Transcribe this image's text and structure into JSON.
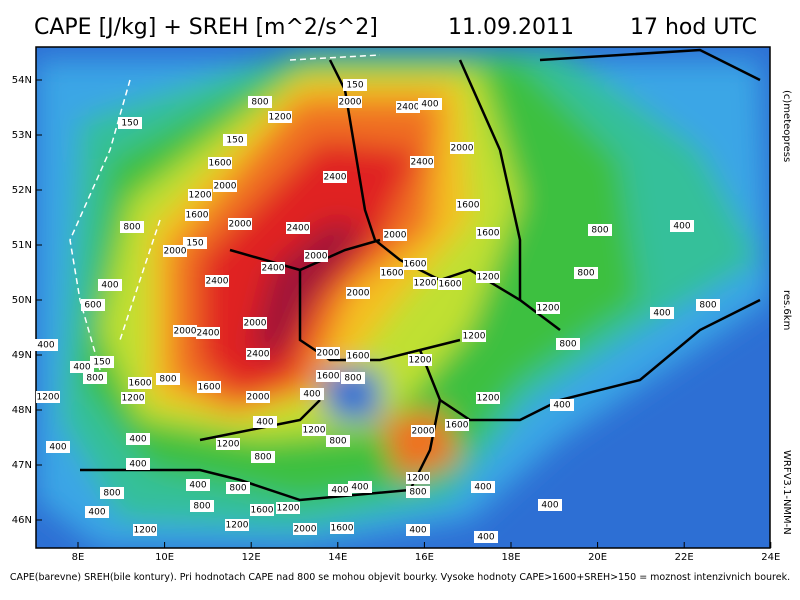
{
  "header": {
    "title": "CAPE [J/kg] + SREH [m^2/s^2]",
    "date": "11.09.2011",
    "time": "17 hod UTC"
  },
  "map": {
    "lat_labels": [
      "54N",
      "53N",
      "52N",
      "51N",
      "50N",
      "49N",
      "48N",
      "47N",
      "46N"
    ],
    "lon_labels": [
      "8E",
      "10E",
      "12E",
      "14E",
      "16E",
      "18E",
      "20E",
      "22E",
      "24E"
    ],
    "contour_labels": [
      "800",
      "1200",
      "2000",
      "2400",
      "400",
      "150",
      "150",
      "150",
      "1600",
      "2000",
      "1200",
      "2400",
      "2400",
      "2000",
      "1600",
      "1600",
      "1600",
      "2000",
      "2400",
      "2000",
      "800",
      "150",
      "2000",
      "2400",
      "2000",
      "1600",
      "1600",
      "1200",
      "800",
      "800",
      "400",
      "2400",
      "1200",
      "1600",
      "2000",
      "400",
      "600",
      "800",
      "1200",
      "400",
      "2000",
      "2400",
      "2000",
      "1200",
      "800",
      "400",
      "2400",
      "2000",
      "1600",
      "1200",
      "150",
      "400",
      "800",
      "1600",
      "800",
      "1600",
      "1600",
      "800",
      "1200",
      "1200",
      "2000",
      "400",
      "1200",
      "400",
      "400",
      "1200",
      "2000",
      "1600",
      "400",
      "800",
      "1200",
      "400",
      "800",
      "400",
      "1200",
      "800",
      "400",
      "400",
      "800",
      "400",
      "800",
      "400",
      "800",
      "1600",
      "1200",
      "400",
      "400",
      "1200",
      "2000",
      "1600",
      "1200",
      "400",
      "400"
    ]
  },
  "side": {
    "copyright": "(c)meteopress",
    "resolution": "res.6km",
    "model": "WRFV3.1-NMM-N"
  },
  "caption": "CAPE(barevne) SREH(bile kontury). Pri hodnotach CAPE nad 800 se mohou objevit bourky. Vysoke hodnoty CAPE>1600+SREH>150 = moznost intenzivnich bourek."
}
